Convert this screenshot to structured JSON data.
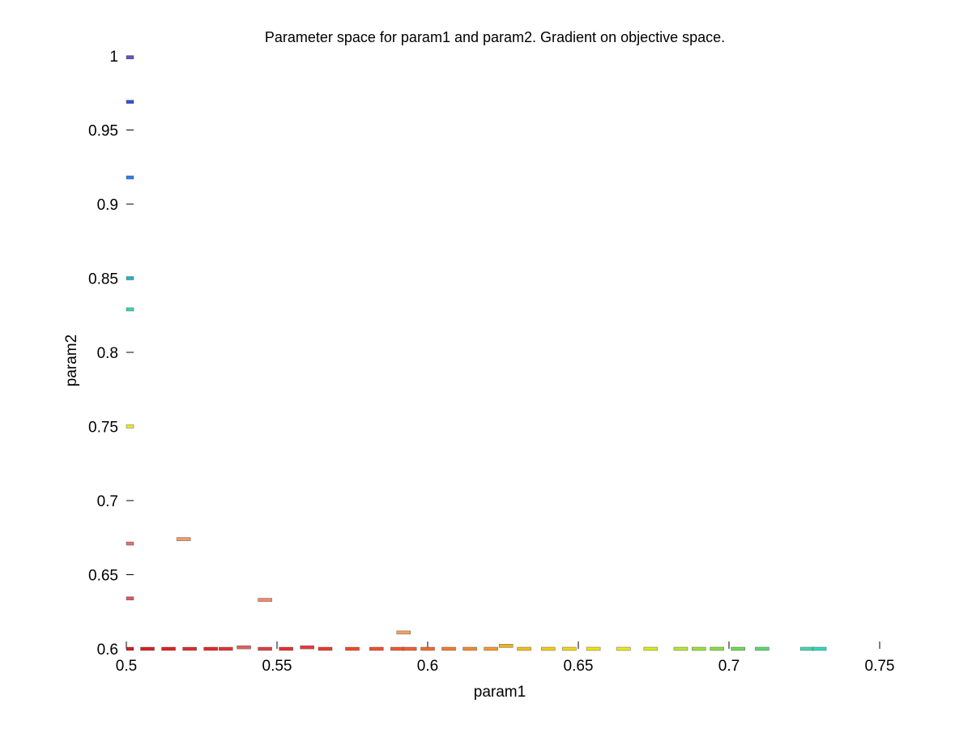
{
  "chart_data": {
    "type": "scatter",
    "title": "Parameter space for param1 and param2. Gradient on objective space.",
    "xlabel": "param1",
    "ylabel": "param2",
    "xlim": [
      0.5,
      0.75
    ],
    "ylim": [
      0.6,
      1.0
    ],
    "xticks": [
      "0.5",
      "0.55",
      "0.6",
      "0.65",
      "0.7",
      "0.75"
    ],
    "yticks": [
      "0.6",
      "0.65",
      "0.7",
      "0.75",
      "0.8",
      "0.85",
      "0.9",
      "0.95",
      "1"
    ],
    "grid": false,
    "legend": "none",
    "colormap": "jet",
    "points": [
      {
        "x": 0.5,
        "y": 0.999,
        "color": "#5a55c8"
      },
      {
        "x": 0.5,
        "y": 0.969,
        "color": "#3a4ee0"
      },
      {
        "x": 0.5,
        "y": 0.918,
        "color": "#2f7fe8"
      },
      {
        "x": 0.5,
        "y": 0.85,
        "color": "#1fb5c8"
      },
      {
        "x": 0.5,
        "y": 0.829,
        "color": "#38d6b0"
      },
      {
        "x": 0.5,
        "y": 0.75,
        "color": "#e8e82a"
      },
      {
        "x": 0.5,
        "y": 0.671,
        "color": "#e07070"
      },
      {
        "x": 0.5,
        "y": 0.634,
        "color": "#d85a5a"
      },
      {
        "x": 0.5,
        "y": 0.6,
        "color": "#cc2020"
      },
      {
        "x": 0.507,
        "y": 0.6,
        "color": "#d82020"
      },
      {
        "x": 0.514,
        "y": 0.6,
        "color": "#dd2222"
      },
      {
        "x": 0.521,
        "y": 0.6,
        "color": "#d83030"
      },
      {
        "x": 0.528,
        "y": 0.6,
        "color": "#e02a2a"
      },
      {
        "x": 0.533,
        "y": 0.6,
        "color": "#e03535"
      },
      {
        "x": 0.539,
        "y": 0.601,
        "color": "#e06060"
      },
      {
        "x": 0.546,
        "y": 0.6,
        "color": "#e04040"
      },
      {
        "x": 0.553,
        "y": 0.6,
        "color": "#e83030"
      },
      {
        "x": 0.56,
        "y": 0.601,
        "color": "#e83a3a"
      },
      {
        "x": 0.566,
        "y": 0.6,
        "color": "#ec3a2a"
      },
      {
        "x": 0.575,
        "y": 0.6,
        "color": "#ee4a2a"
      },
      {
        "x": 0.583,
        "y": 0.6,
        "color": "#f05030"
      },
      {
        "x": 0.59,
        "y": 0.6,
        "color": "#f05a30"
      },
      {
        "x": 0.594,
        "y": 0.6,
        "color": "#f06030"
      },
      {
        "x": 0.6,
        "y": 0.6,
        "color": "#f26a30"
      },
      {
        "x": 0.607,
        "y": 0.6,
        "color": "#f27a30"
      },
      {
        "x": 0.614,
        "y": 0.6,
        "color": "#f28a30"
      },
      {
        "x": 0.621,
        "y": 0.6,
        "color": "#f29a30"
      },
      {
        "x": 0.626,
        "y": 0.602,
        "color": "#f0b020"
      },
      {
        "x": 0.632,
        "y": 0.6,
        "color": "#f0c020"
      },
      {
        "x": 0.64,
        "y": 0.6,
        "color": "#f2cc18"
      },
      {
        "x": 0.647,
        "y": 0.6,
        "color": "#f2d818"
      },
      {
        "x": 0.655,
        "y": 0.6,
        "color": "#f2e010"
      },
      {
        "x": 0.665,
        "y": 0.6,
        "color": "#e8e820"
      },
      {
        "x": 0.674,
        "y": 0.6,
        "color": "#d6ec20"
      },
      {
        "x": 0.684,
        "y": 0.6,
        "color": "#b8e830"
      },
      {
        "x": 0.69,
        "y": 0.6,
        "color": "#9ee040"
      },
      {
        "x": 0.696,
        "y": 0.6,
        "color": "#8cdc48"
      },
      {
        "x": 0.703,
        "y": 0.6,
        "color": "#70d858"
      },
      {
        "x": 0.711,
        "y": 0.6,
        "color": "#5ad870"
      },
      {
        "x": 0.726,
        "y": 0.6,
        "color": "#40d8a8"
      },
      {
        "x": 0.73,
        "y": 0.6,
        "color": "#30d8c0"
      },
      {
        "x": 0.519,
        "y": 0.674,
        "color": "#f0986a"
      },
      {
        "x": 0.546,
        "y": 0.633,
        "color": "#f08a68"
      },
      {
        "x": 0.592,
        "y": 0.611,
        "color": "#f0a060"
      }
    ]
  }
}
